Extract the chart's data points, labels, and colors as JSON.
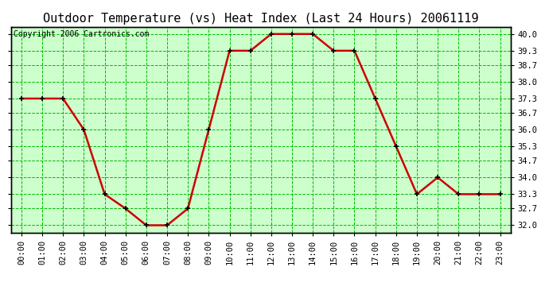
{
  "title": "Outdoor Temperature (vs) Heat Index (Last 24 Hours) 20061119",
  "copyright_text": "Copyright 2006 Cartronics.com",
  "x_labels": [
    "00:00",
    "01:00",
    "02:00",
    "03:00",
    "04:00",
    "05:00",
    "06:00",
    "07:00",
    "08:00",
    "09:00",
    "10:00",
    "11:00",
    "12:00",
    "13:00",
    "14:00",
    "15:00",
    "16:00",
    "17:00",
    "18:00",
    "19:00",
    "20:00",
    "21:00",
    "22:00",
    "23:00"
  ],
  "y_values": [
    37.3,
    37.3,
    37.3,
    36.0,
    33.3,
    32.7,
    32.0,
    32.0,
    32.7,
    36.0,
    39.3,
    39.3,
    40.0,
    40.0,
    40.0,
    39.3,
    39.3,
    37.3,
    35.3,
    33.3,
    34.0,
    33.3,
    33.3,
    33.3
  ],
  "y_ticks": [
    32.0,
    32.7,
    33.3,
    34.0,
    34.7,
    35.3,
    36.0,
    36.7,
    37.3,
    38.0,
    38.7,
    39.3,
    40.0
  ],
  "y_min": 31.7,
  "y_max": 40.3,
  "line_color": "#cc0000",
  "marker_color": "#000000",
  "bg_color": "#ffffff",
  "plot_bg_color": "#ccffcc",
  "grid_color": "#00bb00",
  "title_fontsize": 11,
  "axis_fontsize": 7.5,
  "copyright_fontsize": 7
}
